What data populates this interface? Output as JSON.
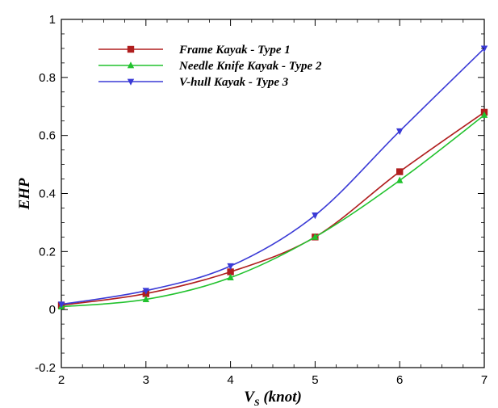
{
  "chart_data": {
    "type": "line",
    "xlabel_main": "V",
    "xlabel_sub": "S",
    "xlabel_unit": " (knot)",
    "ylabel": "EHP",
    "xlim": [
      2,
      7
    ],
    "ylim": [
      -0.2,
      1
    ],
    "x_ticks": [
      "2",
      "3",
      "4",
      "5",
      "6",
      "7"
    ],
    "y_ticks": [
      "-0.2",
      "0",
      "0.2",
      "0.4",
      "0.6",
      "0.8",
      "1"
    ],
    "legend_position": "top-left",
    "grid": false,
    "x": [
      2,
      3,
      4,
      5,
      6,
      7
    ],
    "series": [
      {
        "name": "Frame Kayak - Type 1",
        "color": "#b01e1e",
        "marker": "square",
        "values": [
          0.015,
          0.055,
          0.13,
          0.25,
          0.475,
          0.68
        ]
      },
      {
        "name": "Needle Knife Kayak - Type 2",
        "color": "#22c22e",
        "marker": "triangle-up",
        "values": [
          0.01,
          0.035,
          0.11,
          0.25,
          0.445,
          0.67
        ]
      },
      {
        "name": "V-hull Kayak - Type 3",
        "color": "#3a3ad6",
        "marker": "triangle-down",
        "values": [
          0.018,
          0.065,
          0.15,
          0.325,
          0.615,
          0.9
        ]
      }
    ]
  }
}
